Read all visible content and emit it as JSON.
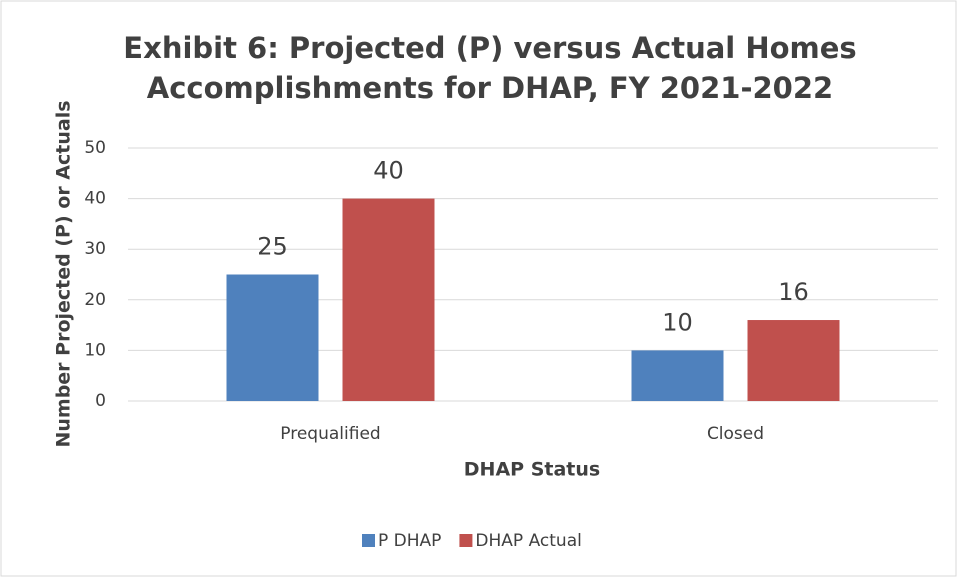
{
  "chart_data": {
    "type": "bar",
    "title": "Exhibit 6: Projected (P) versus Actual Homes Accomplishments for DHAP, FY 2021-2022",
    "xlabel": "DHAP Status",
    "ylabel": "Number Projected (P) or Actuals",
    "categories": [
      "Prequalified",
      "Closed"
    ],
    "series": [
      {
        "name": "P DHAP",
        "color": "#4f81bd",
        "values": [
          25,
          10
        ]
      },
      {
        "name": "DHAP Actual",
        "color": "#c0504d",
        "values": [
          40,
          16
        ]
      }
    ],
    "ylim": [
      0,
      50
    ],
    "yticks": [
      0,
      10,
      20,
      30,
      40,
      50
    ],
    "grid": true,
    "legend": "bottom"
  }
}
